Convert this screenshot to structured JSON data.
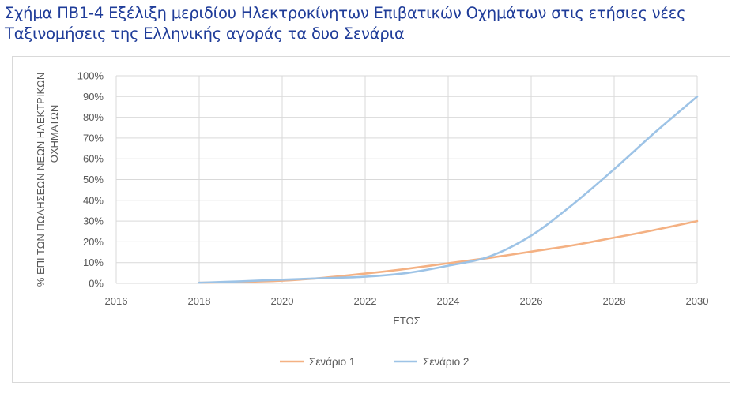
{
  "figure": {
    "title": "Σχήμα ΠΒ1-4 Εξέλιξη μεριδίου Ηλεκτροκίνητων Επιβατικών Οχημάτων στις ετήσιες νέες Ταξινομήσεις της Ελληνικής αγοράς τα δυο Σενάρια"
  },
  "chart_data": {
    "type": "line",
    "title": "",
    "xlabel": "ΕΤΟΣ",
    "ylabel_lines": [
      "% ΕΠΙ ΤΩΝ ΠΩΛΗΣΕΩΝ ΝΕΩΝ ΗΛΕΚΤΡΙΚΩΝ",
      "ΟΧΗΜΑΤΩΝ"
    ],
    "xlim": [
      2016,
      2030
    ],
    "ylim": [
      0,
      100
    ],
    "x_ticks": [
      "2016",
      "2018",
      "2020",
      "2022",
      "2024",
      "2026",
      "2028",
      "2030"
    ],
    "y_ticks": [
      "0%",
      "10%",
      "20%",
      "30%",
      "40%",
      "50%",
      "60%",
      "70%",
      "80%",
      "90%",
      "100%"
    ],
    "grid": "vertical and horizontal",
    "legend_position": "bottom",
    "series": [
      {
        "name": "Σενάριο 1",
        "color": "#f4b183",
        "x": [
          2018,
          2019,
          2020,
          2021,
          2022,
          2023,
          2024,
          2025,
          2026,
          2027,
          2028,
          2029,
          2030
        ],
        "y": [
          0.3,
          0.7,
          1.3,
          2.7,
          4.7,
          7.0,
          9.7,
          12.3,
          15.3,
          18.3,
          22.0,
          25.8,
          30.0
        ]
      },
      {
        "name": "Σενάριο 2",
        "color": "#9dc3e6",
        "x": [
          2018,
          2019,
          2020,
          2021,
          2022,
          2023,
          2024,
          2025,
          2026,
          2027,
          2028,
          2029,
          2030
        ],
        "y": [
          0.3,
          1.0,
          1.8,
          2.5,
          3.2,
          5.0,
          8.5,
          13.0,
          23.0,
          38.0,
          55.0,
          73.0,
          90.0
        ]
      }
    ]
  }
}
